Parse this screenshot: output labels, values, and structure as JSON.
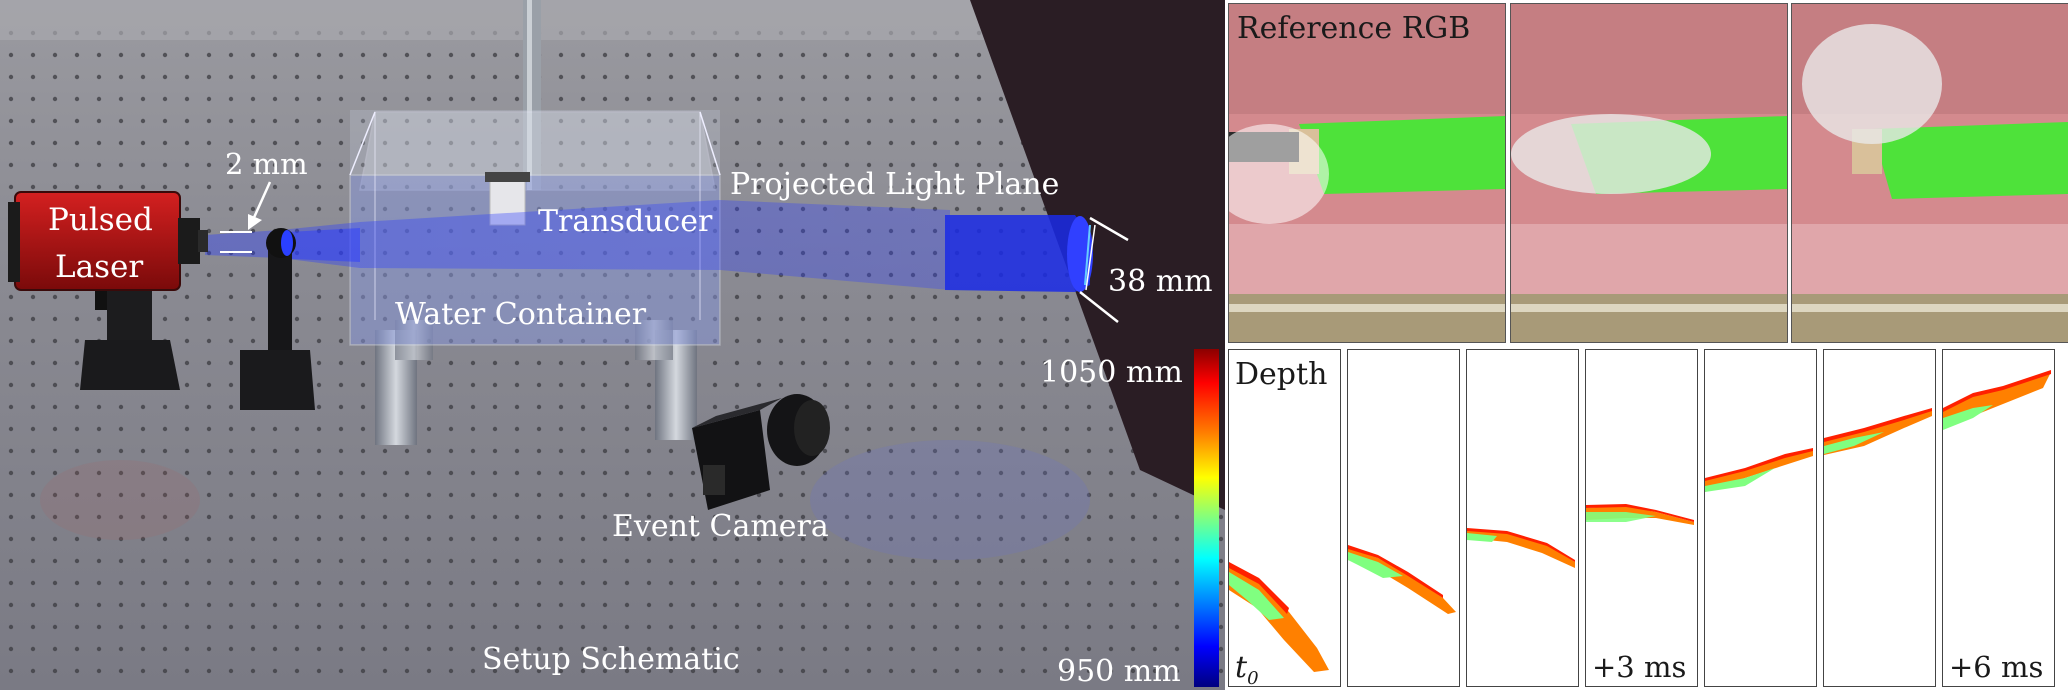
{
  "schematic": {
    "labels": {
      "pulsed_laser": [
        "Pulsed",
        "Laser"
      ],
      "beam_width": "2 mm",
      "transducer": "Transducer",
      "projected_plane": "Projected Light Plane",
      "plane_height": "38 mm",
      "water_container": "Water Container",
      "event_camera": "Event Camera",
      "setup_caption": "Setup Schematic"
    }
  },
  "colorbar": {
    "top_label": "1050 mm",
    "bottom_label": "950 mm",
    "colors": [
      "#8b0000",
      "#ff0000",
      "#ff8000",
      "#ffff00",
      "#80ff80",
      "#00ffff",
      "#0080ff",
      "#0000ff",
      "#00007f"
    ]
  },
  "reference_rgb": {
    "title": "Reference RGB",
    "frames": 3
  },
  "depth": {
    "title": "Depth",
    "t0_base": "t",
    "t0_sub": "0",
    "labels": [
      "",
      "",
      "",
      "+3 ms",
      "",
      "",
      "+6 ms"
    ]
  },
  "colors": {
    "laser_body": "#b01010",
    "table": "#8c8c90",
    "beam": "#3a4cff",
    "screen": "#2a1d24",
    "finger": "#4ee23a",
    "skin": "#d9868a"
  }
}
